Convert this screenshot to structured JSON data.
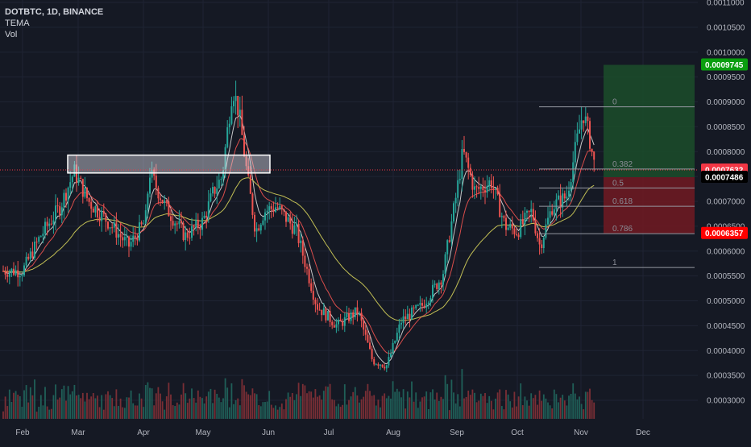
{
  "legend": {
    "symbol": "DOTBTC, 1D, BINANCE",
    "indicator1": "TEMA",
    "indicator2": "Vol"
  },
  "chart_data": {
    "type": "candlestick",
    "x_axis_labels": [
      "Feb",
      "Mar",
      "Apr",
      "May",
      "Jun",
      "Jul",
      "Aug",
      "Sep",
      "Oct",
      "Nov",
      "Dec"
    ],
    "y_ticks": [
      "0.0011000",
      "0.0010500",
      "0.0010000",
      "0.0009500",
      "0.0009000",
      "0.0008500",
      "0.0008000",
      "0.0007500",
      "0.0007000",
      "0.0006500",
      "0.0006000",
      "0.0005500",
      "0.0005000",
      "0.0004500",
      "0.0004000",
      "0.0003500",
      "0.0003000"
    ],
    "ylim": [
      0.00027,
      0.0011
    ],
    "price_path": [
      [
        "Feb 1",
        0.00056
      ],
      [
        "Feb 10",
        0.00063
      ],
      [
        "Feb 20",
        0.00069
      ],
      [
        "Feb 27",
        0.00076
      ],
      [
        "Mar 6",
        0.0007
      ],
      [
        "Mar 15",
        0.00066
      ],
      [
        "Mar 25",
        0.00061
      ],
      [
        "Apr 2",
        0.00066
      ],
      [
        "Apr 4",
        0.00076
      ],
      [
        "Apr 12",
        0.00069
      ],
      [
        "Apr 22",
        0.00063
      ],
      [
        "May 1",
        0.00066
      ],
      [
        "May 6",
        0.00072
      ],
      [
        "May 10",
        0.00075
      ],
      [
        "May 15",
        0.00093
      ],
      [
        "May 18",
        0.00088
      ],
      [
        "May 22",
        0.00075
      ],
      [
        "May 26",
        0.00064
      ],
      [
        "May 30",
        0.00068
      ],
      [
        "Jun 5",
        0.00069
      ],
      [
        "Jun 15",
        0.00064
      ],
      [
        "Jun 25",
        0.00049
      ],
      [
        "Jul 5",
        0.00045
      ],
      [
        "Jul 15",
        0.00048
      ],
      [
        "Jul 22",
        0.00038
      ],
      [
        "Jul 29",
        0.00037
      ],
      [
        "Aug 5",
        0.00046
      ],
      [
        "Aug 15",
        0.00049
      ],
      [
        "Aug 25",
        0.00055
      ],
      [
        "Sep 1",
        0.00072
      ],
      [
        "Sep 4",
        0.0008
      ],
      [
        "Sep 10",
        0.00072
      ],
      [
        "Sep 18",
        0.00074
      ],
      [
        "Sep 25",
        0.00065
      ],
      [
        "Oct 1",
        0.00064
      ],
      [
        "Oct 8",
        0.00068
      ],
      [
        "Oct 12",
        0.00061
      ],
      [
        "Oct 18",
        0.00069
      ],
      [
        "Oct 25",
        0.00071
      ],
      [
        "Oct 30",
        0.00082
      ],
      [
        "Nov 2",
        0.00088
      ],
      [
        "Nov 5",
        0.00083
      ],
      [
        "Nov 8",
        0.00076
      ]
    ],
    "volume_note": "volume histogram along bottom",
    "fib_levels": [
      {
        "label": "0",
        "price": 0.00089
      },
      {
        "label": "0.382",
        "price": 0.000765
      },
      {
        "label": "0.5",
        "price": 0.000727
      },
      {
        "label": "0.618",
        "price": 0.00069
      },
      {
        "label": "0.786",
        "price": 0.000635
      },
      {
        "label": "1",
        "price": 0.000567
      }
    ],
    "price_tags": [
      {
        "text": "0.0009745",
        "price": 0.0009745,
        "color": "#0a9e0f",
        "text_color": "#ffffff"
      },
      {
        "text": "0.0007632",
        "price": 0.0007632,
        "color": "#f23645",
        "text_color": "#ffffff"
      },
      {
        "text": "0.0007486",
        "price": 0.0007486,
        "color": "#000000",
        "text_color": "#ffffff"
      },
      {
        "text": "0.0006357",
        "price": 0.0006357,
        "color": "#ff0000",
        "text_color": "#ffffff"
      }
    ],
    "position": {
      "target": 0.0009745,
      "entry": 0.0007486,
      "stop": 0.0006357
    },
    "resistance_box": {
      "top": 0.000793,
      "bottom": 0.000757
    },
    "colors": {
      "up": "#26a69a",
      "down": "#ef5350",
      "tema_fast": "#d9d9d9",
      "tema_mid": "#ef5350",
      "tema_slow": "#d4d05a",
      "profit_zone": "#1b4d2a",
      "loss_zone": "#6b1a22",
      "background": "#151924"
    }
  }
}
